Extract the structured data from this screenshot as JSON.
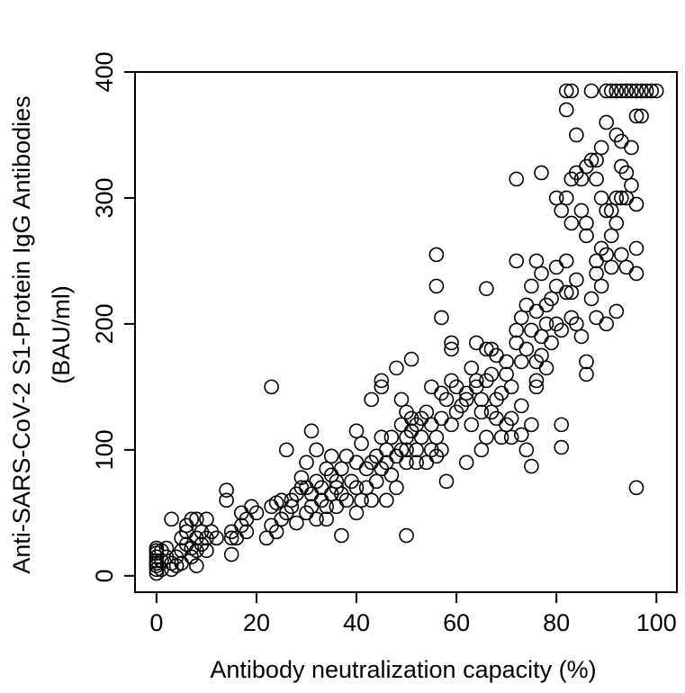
{
  "chart_data": {
    "type": "scatter",
    "xlabel": "Antibody neutralization capacity (%)",
    "ylabel": [
      "Anti-SARS-CoV-2 S1-Protein IgG Antibodies",
      "(BAU/ml)"
    ],
    "xlim": [
      -4.3,
      104.1
    ],
    "ylim": [
      -13,
      400
    ],
    "xticks": [
      0,
      20,
      40,
      60,
      80,
      100
    ],
    "yticks": [
      0,
      100,
      200,
      300,
      400
    ],
    "color": "#000000",
    "x": [
      0,
      0,
      0,
      0,
      0,
      0,
      0,
      0,
      0,
      1,
      1,
      1,
      2,
      2,
      3,
      3,
      3,
      4,
      4,
      5,
      5,
      5,
      6,
      6,
      6,
      7,
      7,
      7,
      8,
      8,
      8,
      8,
      9,
      9,
      10,
      10,
      10,
      11,
      12,
      14,
      14,
      15,
      15,
      15,
      16,
      17,
      17,
      18,
      18,
      19,
      20,
      22,
      23,
      23,
      23,
      24,
      24,
      25,
      25,
      26,
      26,
      27,
      27,
      28,
      28,
      29,
      29,
      30,
      30,
      30,
      31,
      31,
      31,
      32,
      32,
      32,
      33,
      33,
      34,
      34,
      34,
      35,
      35,
      35,
      36,
      36,
      36,
      37,
      37,
      37,
      38,
      38,
      39,
      40,
      40,
      40,
      40,
      41,
      41,
      42,
      42,
      43,
      43,
      43,
      44,
      44,
      45,
      45,
      45,
      45,
      46,
      46,
      46,
      47,
      47,
      48,
      48,
      48,
      49,
      49,
      49,
      50,
      50,
      50,
      50,
      50,
      51,
      51,
      51,
      52,
      52,
      52,
      53,
      53,
      54,
      54,
      55,
      55,
      55,
      56,
      56,
      56,
      56,
      57,
      57,
      57,
      57,
      58,
      58,
      59,
      59,
      59,
      59,
      60,
      60,
      61,
      62,
      62,
      62,
      63,
      63,
      64,
      64,
      64,
      65,
      65,
      65,
      66,
      66,
      66,
      66,
      67,
      67,
      67,
      68,
      68,
      68,
      69,
      69,
      70,
      70,
      70,
      71,
      71,
      71,
      72,
      72,
      72,
      72,
      73,
      73,
      73,
      73,
      74,
      74,
      74,
      75,
      75,
      75,
      75,
      76,
      76,
      76,
      76,
      76,
      77,
      77,
      77,
      77,
      78,
      78,
      78,
      79,
      79,
      80,
      80,
      80,
      80,
      81,
      81,
      81,
      81,
      82,
      82,
      82,
      82,
      82,
      83,
      83,
      83,
      83,
      83,
      84,
      84,
      84,
      84,
      85,
      85,
      85,
      86,
      86,
      86,
      86,
      86,
      87,
      87,
      87,
      88,
      88,
      88,
      88,
      88,
      89,
      89,
      89,
      89,
      90,
      90,
      90,
      90,
      90,
      91,
      91,
      91,
      91,
      92,
      92,
      92,
      92,
      92,
      93,
      93,
      93,
      93,
      93,
      94,
      94,
      94,
      94,
      95,
      95,
      95,
      96,
      96,
      96,
      96,
      96,
      96,
      97,
      97,
      98,
      99,
      100
    ],
    "values": [
      2,
      5,
      8,
      10,
      12,
      15,
      18,
      20,
      22,
      5,
      12,
      20,
      15,
      22,
      45,
      10,
      5,
      8,
      15,
      20,
      30,
      10,
      35,
      25,
      40,
      45,
      15,
      22,
      8,
      30,
      45,
      20,
      25,
      35,
      30,
      20,
      45,
      35,
      30,
      60,
      68,
      30,
      17,
      35,
      30,
      40,
      50,
      45,
      35,
      55,
      50,
      30,
      150,
      55,
      40,
      58,
      35,
      45,
      60,
      100,
      50,
      60,
      55,
      65,
      42,
      78,
      70,
      70,
      50,
      90,
      115,
      65,
      55,
      100,
      75,
      45,
      60,
      70,
      55,
      85,
      45,
      80,
      65,
      95,
      70,
      55,
      75,
      32,
      85,
      65,
      95,
      60,
      75,
      115,
      50,
      90,
      70,
      105,
      60,
      85,
      70,
      90,
      60,
      140,
      95,
      75,
      150,
      155,
      110,
      85,
      100,
      60,
      90,
      110,
      80,
      165,
      95,
      70,
      140,
      120,
      100,
      32,
      100,
      130,
      90,
      110,
      125,
      115,
      172,
      120,
      100,
      90,
      125,
      110,
      90,
      130,
      100,
      150,
      120,
      255,
      230,
      110,
      95,
      205,
      145,
      125,
      100,
      75,
      140,
      185,
      180,
      155,
      120,
      150,
      130,
      135,
      90,
      140,
      145,
      165,
      120,
      185,
      155,
      150,
      140,
      130,
      100,
      228,
      180,
      155,
      110,
      180,
      160,
      130,
      175,
      125,
      140,
      145,
      110,
      160,
      120,
      170,
      110,
      150,
      125,
      315,
      250,
      195,
      185,
      205,
      170,
      135,
      112,
      215,
      180,
      100,
      230,
      195,
      120,
      87,
      250,
      210,
      170,
      150,
      155,
      320,
      240,
      190,
      175,
      200,
      165,
      215,
      220,
      185,
      300,
      245,
      230,
      200,
      290,
      195,
      120,
      102,
      385,
      370,
      300,
      250,
      225,
      385,
      315,
      280,
      225,
      205,
      350,
      320,
      235,
      200,
      315,
      290,
      190,
      325,
      280,
      270,
      160,
      170,
      385,
      330,
      220,
      315,
      330,
      250,
      240,
      205,
      340,
      300,
      260,
      230,
      385,
      360,
      290,
      255,
      200,
      385,
      290,
      270,
      245,
      385,
      350,
      300,
      280,
      210,
      385,
      345,
      325,
      300,
      255,
      385,
      320,
      300,
      245,
      385,
      340,
      310,
      385,
      365,
      295,
      260,
      240,
      70,
      385,
      365,
      385,
      385,
      385
    ]
  }
}
